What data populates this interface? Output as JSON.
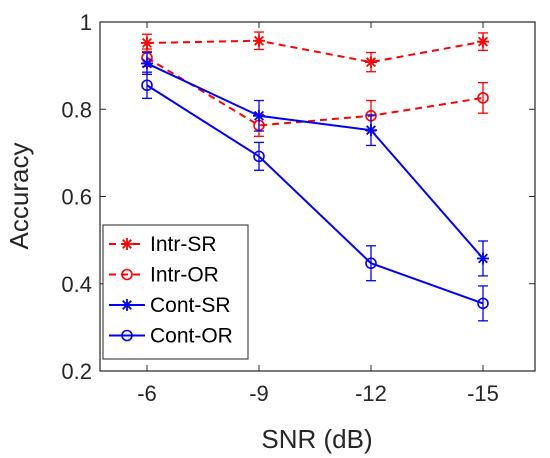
{
  "chart_data": {
    "type": "line",
    "xlabel": "SNR (dB)",
    "ylabel": "Accuracy",
    "categories": [
      "-6",
      "-9",
      "-12",
      "-15"
    ],
    "ylim": [
      0.2,
      1.0
    ],
    "yticks": [
      0.2,
      0.4,
      0.6,
      0.8,
      1.0
    ],
    "ytick_labels": [
      "0.2",
      "0.4",
      "0.6",
      "0.8",
      "1"
    ],
    "legend_position": "bottom-left",
    "grid": false,
    "series": [
      {
        "name": "Intr-SR",
        "color": "#ff0000",
        "dash": true,
        "marker": "star",
        "values": [
          0.952,
          0.957,
          0.908,
          0.955
        ],
        "errors": [
          0.02,
          0.02,
          0.022,
          0.02
        ]
      },
      {
        "name": "Intr-OR",
        "color": "#ff0000",
        "dash": true,
        "marker": "circle",
        "values": [
          0.918,
          0.763,
          0.785,
          0.826
        ],
        "errors": [
          0.02,
          0.025,
          0.035,
          0.035
        ]
      },
      {
        "name": "Cont-SR",
        "color": "#0000ff",
        "dash": false,
        "marker": "star",
        "values": [
          0.905,
          0.785,
          0.752,
          0.458
        ],
        "errors": [
          0.025,
          0.035,
          0.035,
          0.04
        ]
      },
      {
        "name": "Cont-OR",
        "color": "#0000ff",
        "dash": false,
        "marker": "circle",
        "values": [
          0.855,
          0.692,
          0.447,
          0.355
        ],
        "errors": [
          0.03,
          0.032,
          0.04,
          0.04
        ]
      }
    ]
  }
}
